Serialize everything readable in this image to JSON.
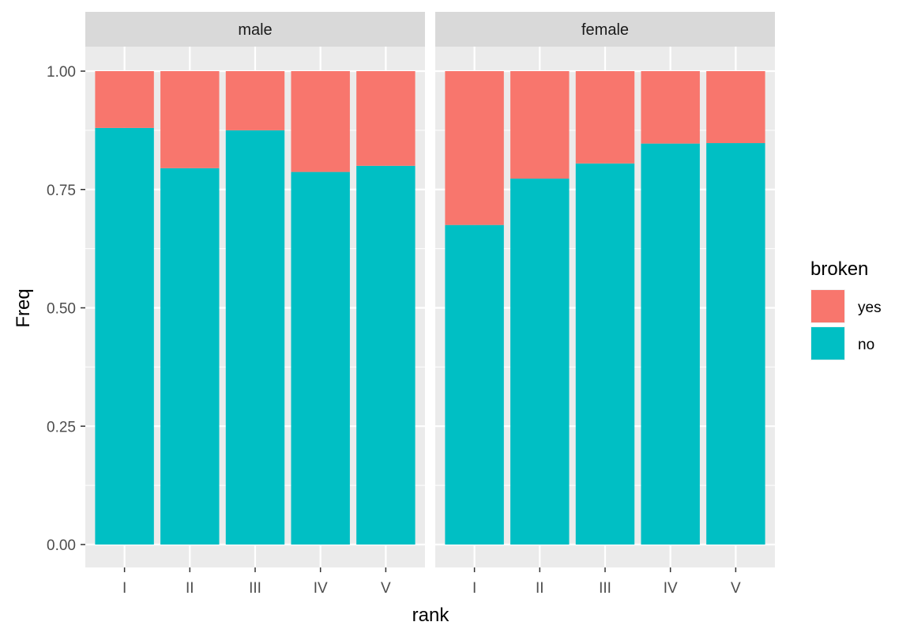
{
  "chart_data": {
    "type": "bar",
    "stacked": true,
    "xlabel": "rank",
    "ylabel": "Freq",
    "ylim": [
      0,
      1.05
    ],
    "yticks": [
      "0.00",
      "0.25",
      "0.50",
      "0.75",
      "1.00"
    ],
    "ytick_values": [
      0,
      0.25,
      0.5,
      0.75,
      1.0
    ],
    "categories": [
      "I",
      "II",
      "III",
      "IV",
      "V"
    ],
    "legend": {
      "title": "broken",
      "placement": "right",
      "entries": [
        {
          "label": "yes",
          "color": "#F8766D"
        },
        {
          "label": "no",
          "color": "#00BFC4"
        }
      ]
    },
    "panels": [
      {
        "label": "male",
        "series": [
          {
            "name": "no",
            "values": [
              0.88,
              0.795,
              0.875,
              0.787,
              0.8
            ]
          },
          {
            "name": "yes",
            "values": [
              0.12,
              0.205,
              0.125,
              0.213,
              0.2
            ]
          }
        ]
      },
      {
        "label": "female",
        "series": [
          {
            "name": "no",
            "values": [
              0.675,
              0.773,
              0.805,
              0.847,
              0.848
            ]
          },
          {
            "name": "yes",
            "values": [
              0.325,
              0.227,
              0.195,
              0.153,
              0.152
            ]
          }
        ]
      }
    ],
    "grid": true,
    "panel_background": "#EBEBEB",
    "strip_background": "#D9D9D9"
  }
}
